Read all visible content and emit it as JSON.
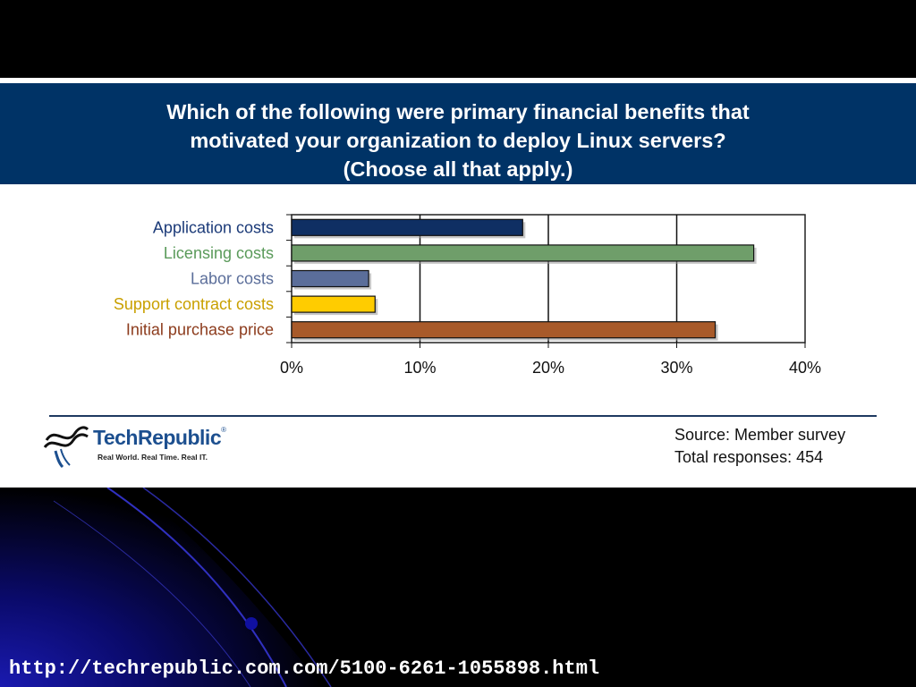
{
  "question": {
    "line1": "Which of the following were primary financial benefits that",
    "line2": "motivated your organization to deploy Linux servers?",
    "line3": "(Choose all that apply.)"
  },
  "chart_data": {
    "type": "bar",
    "orientation": "horizontal",
    "categories": [
      "Application costs",
      "Licensing costs",
      "Labor costs",
      "Support contract costs",
      "Initial purchase price"
    ],
    "values": [
      18,
      36,
      6,
      6.5,
      33
    ],
    "bar_colors": [
      "#0f2f63",
      "#6f9e6a",
      "#5b6e9a",
      "#ffcc00",
      "#a85a2a"
    ],
    "label_colors": [
      "#1b3a78",
      "#5a9a5a",
      "#5b6e9a",
      "#c9a000",
      "#8c3b1c"
    ],
    "x_ticks": [
      "0%",
      "10%",
      "20%",
      "30%",
      "40%"
    ],
    "xlim": [
      0,
      40
    ],
    "grid": true
  },
  "footer": {
    "logo_brand_tech": "Tech",
    "logo_brand_republic": "Republic",
    "logo_reg": "®",
    "logo_tagline": "Real World. Real Time. Real IT.",
    "source": "Source: Member survey",
    "responses": "Total responses: 454"
  },
  "url": "http://techrepublic.com.com/5100-6261-1055898.html",
  "colors": {
    "band": "#003366",
    "background": "#000000"
  }
}
